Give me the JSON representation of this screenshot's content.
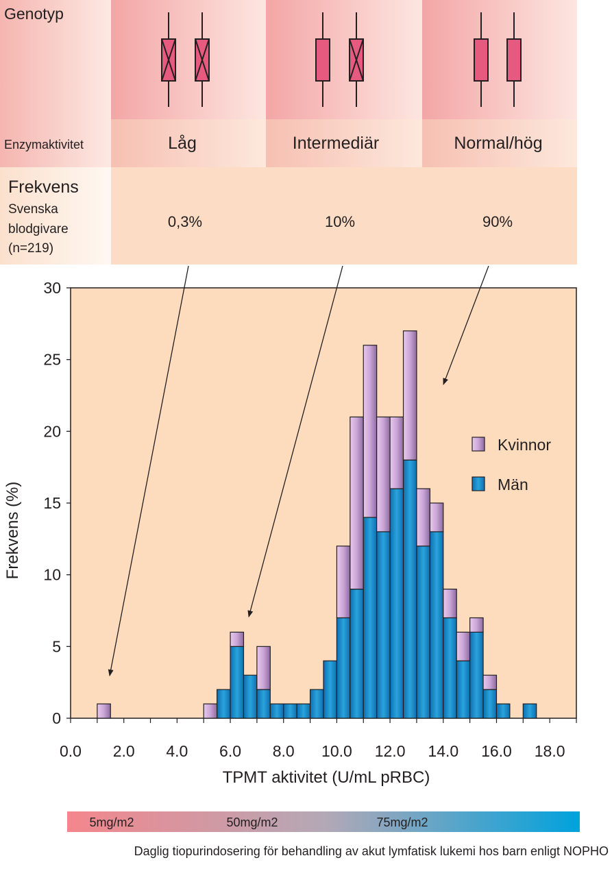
{
  "table": {
    "genotype_label": "Genotyp",
    "enzyme_label": "Enzymaktivitet",
    "freq_label": "Frekvens",
    "freq_sub1": "Svenska",
    "freq_sub2": "blodgivare",
    "freq_sub3": "(n=219)",
    "columns": [
      {
        "enzyme": "Låg",
        "freq": "0,3%"
      },
      {
        "enzyme": "Intermediär",
        "freq": "10%"
      },
      {
        "enzyme": "Normal/hög",
        "freq": "90%"
      }
    ]
  },
  "colors": {
    "kvinnor": "#c9a6d6",
    "man": "#1e8ec9",
    "plot_bg": "#fddcbe",
    "allele": "#e55a7e",
    "dose_start": "#f4868c",
    "dose_end": "#00a2dc"
  },
  "chart_data": {
    "type": "bar",
    "stacked": true,
    "xlabel": "TPMT aktivitet (U/mL pRBC)",
    "ylabel": "Frekvens (%)",
    "xlim": [
      0,
      19
    ],
    "ylim": [
      0,
      30
    ],
    "xticks": [
      0,
      2,
      4,
      6,
      8,
      10,
      12,
      14,
      16,
      18
    ],
    "xtick_labels": [
      "0.0",
      "2.0",
      "4.0",
      "6.0",
      "8.0",
      "10.0",
      "12.0",
      "14.0",
      "16.0",
      "18.0"
    ],
    "yticks": [
      0,
      5,
      10,
      15,
      20,
      25,
      30
    ],
    "bin_width": 0.5,
    "bins": [
      1.0,
      5.0,
      5.5,
      6.0,
      6.5,
      7.0,
      7.5,
      8.0,
      8.5,
      9.0,
      9.5,
      10.0,
      10.5,
      11.0,
      11.5,
      12.0,
      12.5,
      13.0,
      13.5,
      14.0,
      14.5,
      15.0,
      15.5,
      16.0,
      17.0
    ],
    "series": [
      {
        "name": "Män",
        "values": [
          0,
          0,
          2,
          5,
          3,
          2,
          1,
          1,
          1,
          2,
          4,
          7,
          9,
          14,
          13,
          16,
          18,
          12,
          13,
          7,
          4,
          6,
          2,
          1,
          1
        ]
      },
      {
        "name": "Kvinnor",
        "values": [
          1,
          1,
          0,
          1,
          0,
          3,
          0,
          0,
          0,
          0,
          0,
          5,
          12,
          12,
          8,
          5,
          9,
          4,
          2,
          2,
          2,
          1,
          1,
          0,
          0
        ]
      }
    ],
    "legend": [
      "Kvinnor",
      "Män"
    ],
    "legend_position": "right"
  },
  "dose_bar": {
    "labels": [
      "5mg/m2",
      "50mg/m2",
      "75mg/m2"
    ],
    "caption": "Daglig tiopurindosering för behandling av akut lymfatisk lukemi hos barn enligt NOPHO"
  }
}
